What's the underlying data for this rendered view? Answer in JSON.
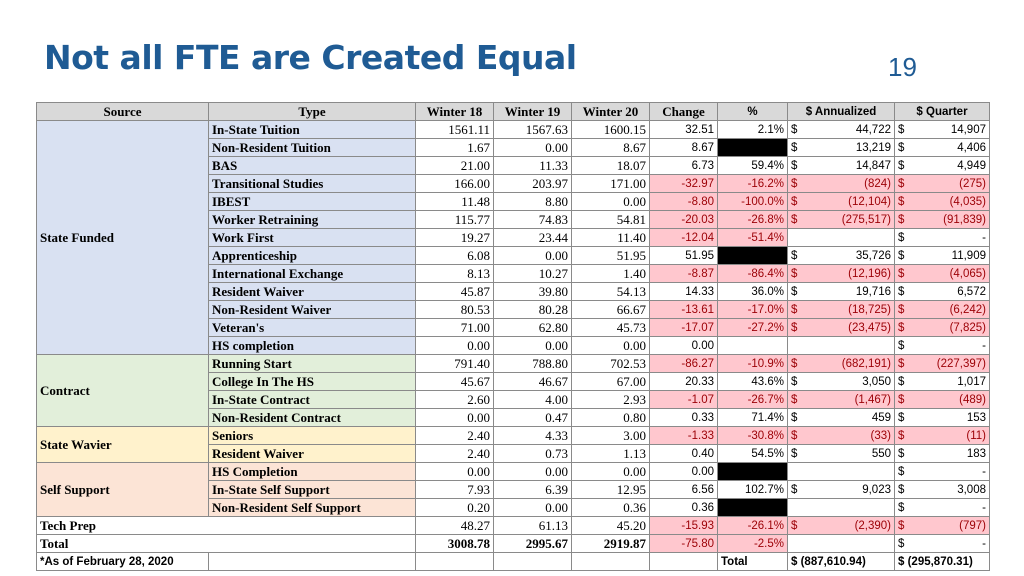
{
  "title": "Not all FTE are Created Equal",
  "page_number": "19",
  "headers": [
    "Source",
    "Type",
    "Winter 18",
    "Winter 19",
    "Winter 20",
    "Change",
    "%",
    "$ Annualized",
    "$ Quarter"
  ],
  "colors": {
    "title": "#1f5b94",
    "negative_fill": "#ffc7ce",
    "negative_text": "#9c0006",
    "state_funded": "#d9e1f2",
    "contract": "#e2efda",
    "state_wavier": "#fff2cc",
    "self_support": "#fce4d6"
  },
  "groups": [
    {
      "source": "State Funded",
      "color": "state",
      "rows": [
        {
          "type": "In-State Tuition",
          "w18": "1561.11",
          "w19": "1567.63",
          "w20": "1600.15",
          "change": "32.51",
          "change_neg": false,
          "pct": "2.1%",
          "pct_neg": false,
          "pct_black": false,
          "ann_d": "$",
          "ann": "44,722",
          "ann_neg": false,
          "q_d": "$",
          "q": "14,907",
          "q_neg": false
        },
        {
          "type": "Non-Resident Tuition",
          "w18": "1.67",
          "w19": "0.00",
          "w20": "8.67",
          "change": "8.67",
          "change_neg": false,
          "pct": "",
          "pct_neg": false,
          "pct_black": true,
          "ann_d": "$",
          "ann": "13,219",
          "ann_neg": false,
          "q_d": "$",
          "q": "4,406",
          "q_neg": false
        },
        {
          "type": "BAS",
          "w18": "21.00",
          "w19": "11.33",
          "w20": "18.07",
          "change": "6.73",
          "change_neg": false,
          "pct": "59.4%",
          "pct_neg": false,
          "pct_black": false,
          "ann_d": "$",
          "ann": "14,847",
          "ann_neg": false,
          "q_d": "$",
          "q": "4,949",
          "q_neg": false
        },
        {
          "type": "Transitional Studies",
          "w18": "166.00",
          "w19": "203.97",
          "w20": "171.00",
          "change": "-32.97",
          "change_neg": true,
          "pct": "-16.2%",
          "pct_neg": true,
          "pct_black": false,
          "ann_d": "$",
          "ann": "(824)",
          "ann_neg": true,
          "q_d": "$",
          "q": "(275)",
          "q_neg": true
        },
        {
          "type": "IBEST",
          "w18": "11.48",
          "w19": "8.80",
          "w20": "0.00",
          "change": "-8.80",
          "change_neg": true,
          "pct": "-100.0%",
          "pct_neg": true,
          "pct_black": false,
          "ann_d": "$",
          "ann": "(12,104)",
          "ann_neg": true,
          "q_d": "$",
          "q": "(4,035)",
          "q_neg": true
        },
        {
          "type": "Worker Retraining",
          "w18": "115.77",
          "w19": "74.83",
          "w20": "54.81",
          "change": "-20.03",
          "change_neg": true,
          "pct": "-26.8%",
          "pct_neg": true,
          "pct_black": false,
          "ann_d": "$",
          "ann": "(275,517)",
          "ann_neg": true,
          "q_d": "$",
          "q": "(91,839)",
          "q_neg": true
        },
        {
          "type": "Work First",
          "w18": "19.27",
          "w19": "23.44",
          "w20": "11.40",
          "change": "-12.04",
          "change_neg": true,
          "pct": "-51.4%",
          "pct_neg": true,
          "pct_black": false,
          "ann_d": "",
          "ann": "",
          "ann_neg": false,
          "q_d": "$",
          "q": "-",
          "q_neg": false
        },
        {
          "type": "Apprenticeship",
          "w18": "6.08",
          "w19": "0.00",
          "w20": "51.95",
          "change": "51.95",
          "change_neg": false,
          "pct": "",
          "pct_neg": false,
          "pct_black": true,
          "ann_d": "$",
          "ann": "35,726",
          "ann_neg": false,
          "q_d": "$",
          "q": "11,909",
          "q_neg": false
        },
        {
          "type": "International Exchange",
          "w18": "8.13",
          "w19": "10.27",
          "w20": "1.40",
          "change": "-8.87",
          "change_neg": true,
          "pct": "-86.4%",
          "pct_neg": true,
          "pct_black": false,
          "ann_d": "$",
          "ann": "(12,196)",
          "ann_neg": true,
          "q_d": "$",
          "q": "(4,065)",
          "q_neg": true
        },
        {
          "type": "Resident Waiver",
          "w18": "45.87",
          "w19": "39.80",
          "w20": "54.13",
          "change": "14.33",
          "change_neg": false,
          "pct": "36.0%",
          "pct_neg": false,
          "pct_black": false,
          "ann_d": "$",
          "ann": "19,716",
          "ann_neg": false,
          "q_d": "$",
          "q": "6,572",
          "q_neg": false
        },
        {
          "type": "Non-Resident Waiver",
          "w18": "80.53",
          "w19": "80.28",
          "w20": "66.67",
          "change": "-13.61",
          "change_neg": true,
          "pct": "-17.0%",
          "pct_neg": true,
          "pct_black": false,
          "ann_d": "$",
          "ann": "(18,725)",
          "ann_neg": true,
          "q_d": "$",
          "q": "(6,242)",
          "q_neg": true
        },
        {
          "type": "Veteran's",
          "w18": "71.00",
          "w19": "62.80",
          "w20": "45.73",
          "change": "-17.07",
          "change_neg": true,
          "pct": "-27.2%",
          "pct_neg": true,
          "pct_black": false,
          "ann_d": "$",
          "ann": "(23,475)",
          "ann_neg": true,
          "q_d": "$",
          "q": "(7,825)",
          "q_neg": true
        },
        {
          "type": "HS completion",
          "w18": "0.00",
          "w19": "0.00",
          "w20": "0.00",
          "change": "0.00",
          "change_neg": false,
          "pct": "",
          "pct_neg": false,
          "pct_black": false,
          "ann_d": "",
          "ann": "",
          "ann_neg": false,
          "q_d": "$",
          "q": "-",
          "q_neg": false
        }
      ]
    },
    {
      "source": "Contract",
      "color": "contract",
      "rows": [
        {
          "type": "Running Start",
          "w18": "791.40",
          "w19": "788.80",
          "w20": "702.53",
          "change": "-86.27",
          "change_neg": true,
          "pct": "-10.9%",
          "pct_neg": true,
          "pct_black": false,
          "ann_d": "$",
          "ann": "(682,191)",
          "ann_neg": true,
          "q_d": "$",
          "q": "(227,397)",
          "q_neg": true
        },
        {
          "type": "College In The HS",
          "w18": "45.67",
          "w19": "46.67",
          "w20": "67.00",
          "change": "20.33",
          "change_neg": false,
          "pct": "43.6%",
          "pct_neg": false,
          "pct_black": false,
          "ann_d": "$",
          "ann": "3,050",
          "ann_neg": false,
          "q_d": "$",
          "q": "1,017",
          "q_neg": false
        },
        {
          "type": "In-State Contract",
          "w18": "2.60",
          "w19": "4.00",
          "w20": "2.93",
          "change": "-1.07",
          "change_neg": true,
          "pct": "-26.7%",
          "pct_neg": true,
          "pct_black": false,
          "ann_d": "$",
          "ann": "(1,467)",
          "ann_neg": true,
          "q_d": "$",
          "q": "(489)",
          "q_neg": true
        },
        {
          "type": "Non-Resident Contract",
          "w18": "0.00",
          "w19": "0.47",
          "w20": "0.80",
          "change": "0.33",
          "change_neg": false,
          "pct": "71.4%",
          "pct_neg": false,
          "pct_black": false,
          "ann_d": "$",
          "ann": "459",
          "ann_neg": false,
          "q_d": "$",
          "q": "153",
          "q_neg": false
        }
      ]
    },
    {
      "source": "State Wavier",
      "color": "wavier",
      "rows": [
        {
          "type": "Seniors",
          "w18": "2.40",
          "w19": "4.33",
          "w20": "3.00",
          "change": "-1.33",
          "change_neg": true,
          "pct": "-30.8%",
          "pct_neg": true,
          "pct_black": false,
          "ann_d": "$",
          "ann": "(33)",
          "ann_neg": true,
          "q_d": "$",
          "q": "(11)",
          "q_neg": true
        },
        {
          "type": "Resident Waiver",
          "w18": "2.40",
          "w19": "0.73",
          "w20": "1.13",
          "change": "0.40",
          "change_neg": false,
          "pct": "54.5%",
          "pct_neg": false,
          "pct_black": false,
          "ann_d": "$",
          "ann": "550",
          "ann_neg": false,
          "q_d": "$",
          "q": "183",
          "q_neg": false
        }
      ]
    },
    {
      "source": "Self Support",
      "color": "self",
      "rows": [
        {
          "type": "HS Completion",
          "w18": "0.00",
          "w19": "0.00",
          "w20": "0.00",
          "change": "0.00",
          "change_neg": false,
          "pct": "",
          "pct_neg": false,
          "pct_black": true,
          "ann_d": "",
          "ann": "",
          "ann_neg": false,
          "q_d": "$",
          "q": "-",
          "q_neg": false
        },
        {
          "type": "In-State Self Support",
          "w18": "7.93",
          "w19": "6.39",
          "w20": "12.95",
          "change": "6.56",
          "change_neg": false,
          "pct": "102.7%",
          "pct_neg": false,
          "pct_black": false,
          "ann_d": "$",
          "ann": "9,023",
          "ann_neg": false,
          "q_d": "$",
          "q": "3,008",
          "q_neg": false
        },
        {
          "type": "Non-Resident Self Support",
          "w18": "0.20",
          "w19": "0.00",
          "w20": "0.36",
          "change": "0.36",
          "change_neg": false,
          "pct": "",
          "pct_neg": false,
          "pct_black": true,
          "ann_d": "",
          "ann": "",
          "ann_neg": false,
          "q_d": "$",
          "q": "-",
          "q_neg": false
        }
      ]
    }
  ],
  "tech_prep": {
    "label": "Tech Prep",
    "w18": "48.27",
    "w19": "61.13",
    "w20": "45.20",
    "change": "-15.93",
    "pct": "-26.1%",
    "ann_d": "$",
    "ann": "(2,390)",
    "q_d": "$",
    "q": "(797)"
  },
  "total": {
    "label": "Total",
    "w18": "3008.78",
    "w19": "2995.67",
    "w20": "2919.87",
    "change": "-75.80",
    "pct": "-2.5%",
    "q_d": "$",
    "q": "-"
  },
  "footer": {
    "note": "*As of February 28, 2020",
    "total_label": "Total",
    "ann_total": "$ (887,610.94)",
    "q_total": "$ (295,870.31)"
  }
}
